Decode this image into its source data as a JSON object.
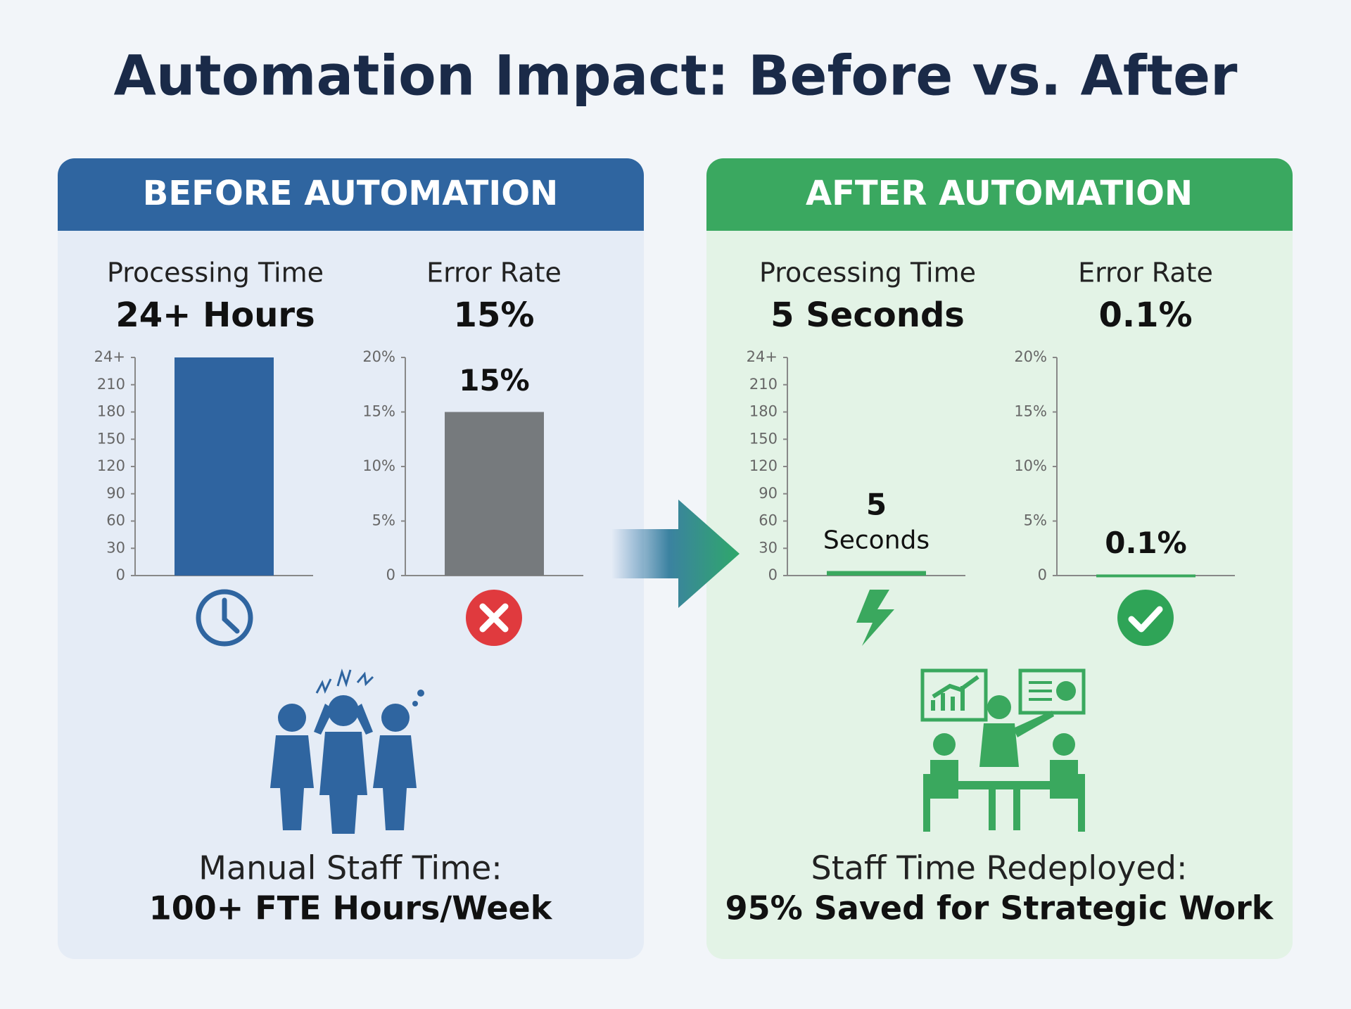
{
  "title": "Automation Impact: Before vs. After",
  "panels": [
    {
      "header": "BEFORE AUTOMATION",
      "metrics": [
        {
          "label": "Processing Time",
          "value": "24+ Hours"
        },
        {
          "label": "Error Rate",
          "value": "15%"
        }
      ],
      "footer": {
        "label": "Manual Staff Time:",
        "value": "100+ FTE Hours/Week"
      }
    },
    {
      "header": "AFTER AUTOMATION",
      "metrics": [
        {
          "label": "Processing Time",
          "value": "5 Seconds"
        },
        {
          "label": "Error Rate",
          "value": "0.1%"
        }
      ],
      "footer": {
        "label": "Staff Time Redeployed:",
        "value": "95% Saved for Strategic Work"
      }
    }
  ],
  "chart_data": [
    {
      "type": "bar",
      "categories": [
        null
      ],
      "values": [
        240
      ],
      "color": "#2f64a0",
      "ylim": [
        0,
        240
      ],
      "yticks": [
        0,
        30,
        60,
        90,
        120,
        150,
        180,
        210,
        {
          "value": 240,
          "label": "24+"
        }
      ]
    },
    {
      "type": "bar",
      "categories": [
        null
      ],
      "values": [
        15
      ],
      "value_labels": [
        "15%"
      ],
      "color": "#767a7d",
      "ylim": [
        0,
        20
      ],
      "yticks": [
        0,
        {
          "value": 5,
          "label": "5%"
        },
        {
          "value": 10,
          "label": "10%"
        },
        {
          "value": 15,
          "label": "15%"
        },
        {
          "value": 20,
          "label": "20%"
        }
      ]
    },
    {
      "type": "bar",
      "categories": [
        null
      ],
      "values": [
        5
      ],
      "value_labels": [
        "5 Seconds"
      ],
      "color": "#3aa85e",
      "ylim": [
        0,
        240
      ],
      "yticks": [
        0,
        30,
        60,
        90,
        120,
        150,
        180,
        210,
        {
          "value": 240,
          "label": "24+"
        }
      ]
    },
    {
      "type": "bar",
      "categories": [
        null
      ],
      "values": [
        0.1
      ],
      "value_labels": [
        "0.1%"
      ],
      "color": "#3aa85e",
      "ylim": [
        0,
        20
      ],
      "yticks": [
        0,
        {
          "value": 5,
          "label": "5%"
        },
        {
          "value": 10,
          "label": "10%"
        },
        {
          "value": 15,
          "label": "15%"
        },
        {
          "value": 20,
          "label": "20%"
        }
      ]
    }
  ]
}
